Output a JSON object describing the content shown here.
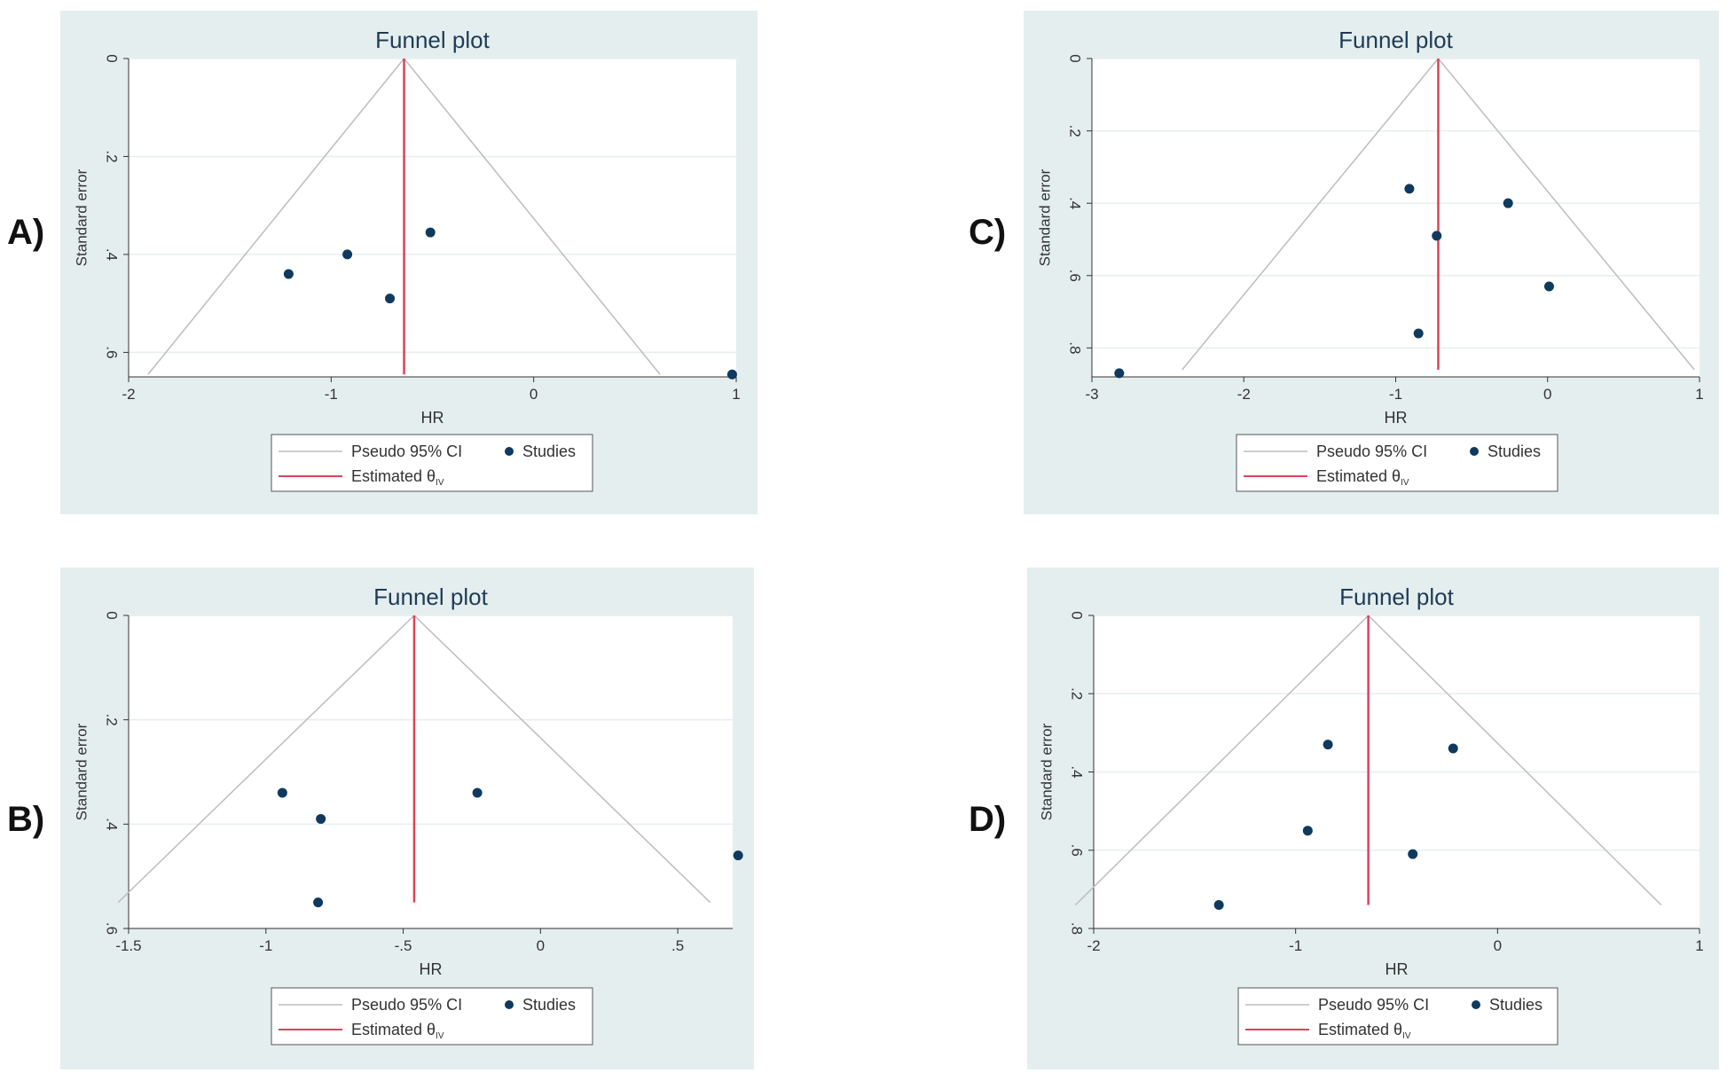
{
  "colors": {
    "panel_bg": "#e4eeee",
    "plot_bg": "#ffffff",
    "grid": "#e7eeee",
    "title": "#1f3b57",
    "axis": "#333333",
    "funnel": "#bdbdbd",
    "estimate": "#e0415b",
    "points": "#0f3a5e"
  },
  "legend": {
    "ci_label": "Pseudo 95% CI",
    "studies_label": "Studies",
    "estimate_label": "Estimated θ",
    "estimate_subscript": "IV"
  },
  "chart_data": [
    {
      "type": "scatter",
      "label": "A)",
      "title": "Funnel plot",
      "xlabel": "HR",
      "ylabel": "Standard error",
      "xlim": [
        -2.0,
        1.0
      ],
      "ylim": [
        0,
        0.65
      ],
      "y_reversed": true,
      "xticks": [
        -2,
        -1,
        0,
        1
      ],
      "xtick_labels": [
        "-2",
        "-1",
        "0",
        "1"
      ],
      "yticks": [
        0,
        0.2,
        0.4,
        0.6
      ],
      "ytick_labels": [
        "0",
        ".2",
        ".4",
        ".6"
      ],
      "estimate": -0.64,
      "funnel_max_se": 0.645,
      "points": [
        {
          "x": -1.21,
          "y": 0.44
        },
        {
          "x": -0.92,
          "y": 0.4
        },
        {
          "x": -0.71,
          "y": 0.49
        },
        {
          "x": -0.51,
          "y": 0.355
        },
        {
          "x": 0.98,
          "y": 0.645
        }
      ]
    },
    {
      "type": "scatter",
      "label": "B)",
      "title": "Funnel plot",
      "xlabel": "HR",
      "ylabel": "Standard error",
      "xlim": [
        -1.5,
        0.7
      ],
      "ylim": [
        0,
        0.6
      ],
      "y_reversed": true,
      "xticks": [
        -1.5,
        -1,
        -0.5,
        0,
        0.5
      ],
      "xtick_labels": [
        "-1.5",
        "-1",
        "-.5",
        "0",
        ".5"
      ],
      "yticks": [
        0,
        0.2,
        0.4,
        0.6
      ],
      "ytick_labels": [
        "0",
        ".2",
        ".4",
        ".6"
      ],
      "estimate": -0.46,
      "funnel_max_se": 0.55,
      "points": [
        {
          "x": -0.94,
          "y": 0.34
        },
        {
          "x": -0.8,
          "y": 0.39
        },
        {
          "x": -0.81,
          "y": 0.55
        },
        {
          "x": -0.23,
          "y": 0.34
        },
        {
          "x": 0.72,
          "y": 0.46
        }
      ]
    },
    {
      "type": "scatter",
      "label": "C)",
      "title": "Funnel plot",
      "xlabel": "HR",
      "ylabel": "Standard error",
      "xlim": [
        -3.0,
        1.0
      ],
      "ylim": [
        0,
        0.88
      ],
      "y_reversed": true,
      "xticks": [
        -3,
        -2,
        -1,
        0,
        1
      ],
      "xtick_labels": [
        "-3",
        "-2",
        "-1",
        "0",
        "1"
      ],
      "yticks": [
        0,
        0.2,
        0.4,
        0.6,
        0.8
      ],
      "ytick_labels": [
        "0",
        ".2",
        ".4",
        ".6",
        ".8"
      ],
      "estimate": -0.72,
      "funnel_max_se": 0.86,
      "points": [
        {
          "x": -0.91,
          "y": 0.36
        },
        {
          "x": -0.26,
          "y": 0.4
        },
        {
          "x": -0.73,
          "y": 0.49
        },
        {
          "x": 0.01,
          "y": 0.63
        },
        {
          "x": -0.85,
          "y": 0.76
        },
        {
          "x": -2.82,
          "y": 0.87
        }
      ]
    },
    {
      "type": "scatter",
      "label": "D)",
      "title": "Funnel plot",
      "xlabel": "HR",
      "ylabel": "Standard error",
      "xlim": [
        -2.0,
        1.0
      ],
      "ylim": [
        0,
        0.8
      ],
      "y_reversed": true,
      "xticks": [
        -2,
        -1,
        0,
        1
      ],
      "xtick_labels": [
        "-2",
        "-1",
        "0",
        "1"
      ],
      "yticks": [
        0,
        0.2,
        0.4,
        0.6,
        0.8
      ],
      "ytick_labels": [
        "0",
        ".2",
        ".4",
        ".6",
        ".8"
      ],
      "estimate": -0.64,
      "funnel_max_se": 0.74,
      "points": [
        {
          "x": -0.84,
          "y": 0.33
        },
        {
          "x": -0.22,
          "y": 0.34
        },
        {
          "x": -0.94,
          "y": 0.55
        },
        {
          "x": -0.42,
          "y": 0.61
        },
        {
          "x": -1.38,
          "y": 0.74
        }
      ]
    }
  ]
}
